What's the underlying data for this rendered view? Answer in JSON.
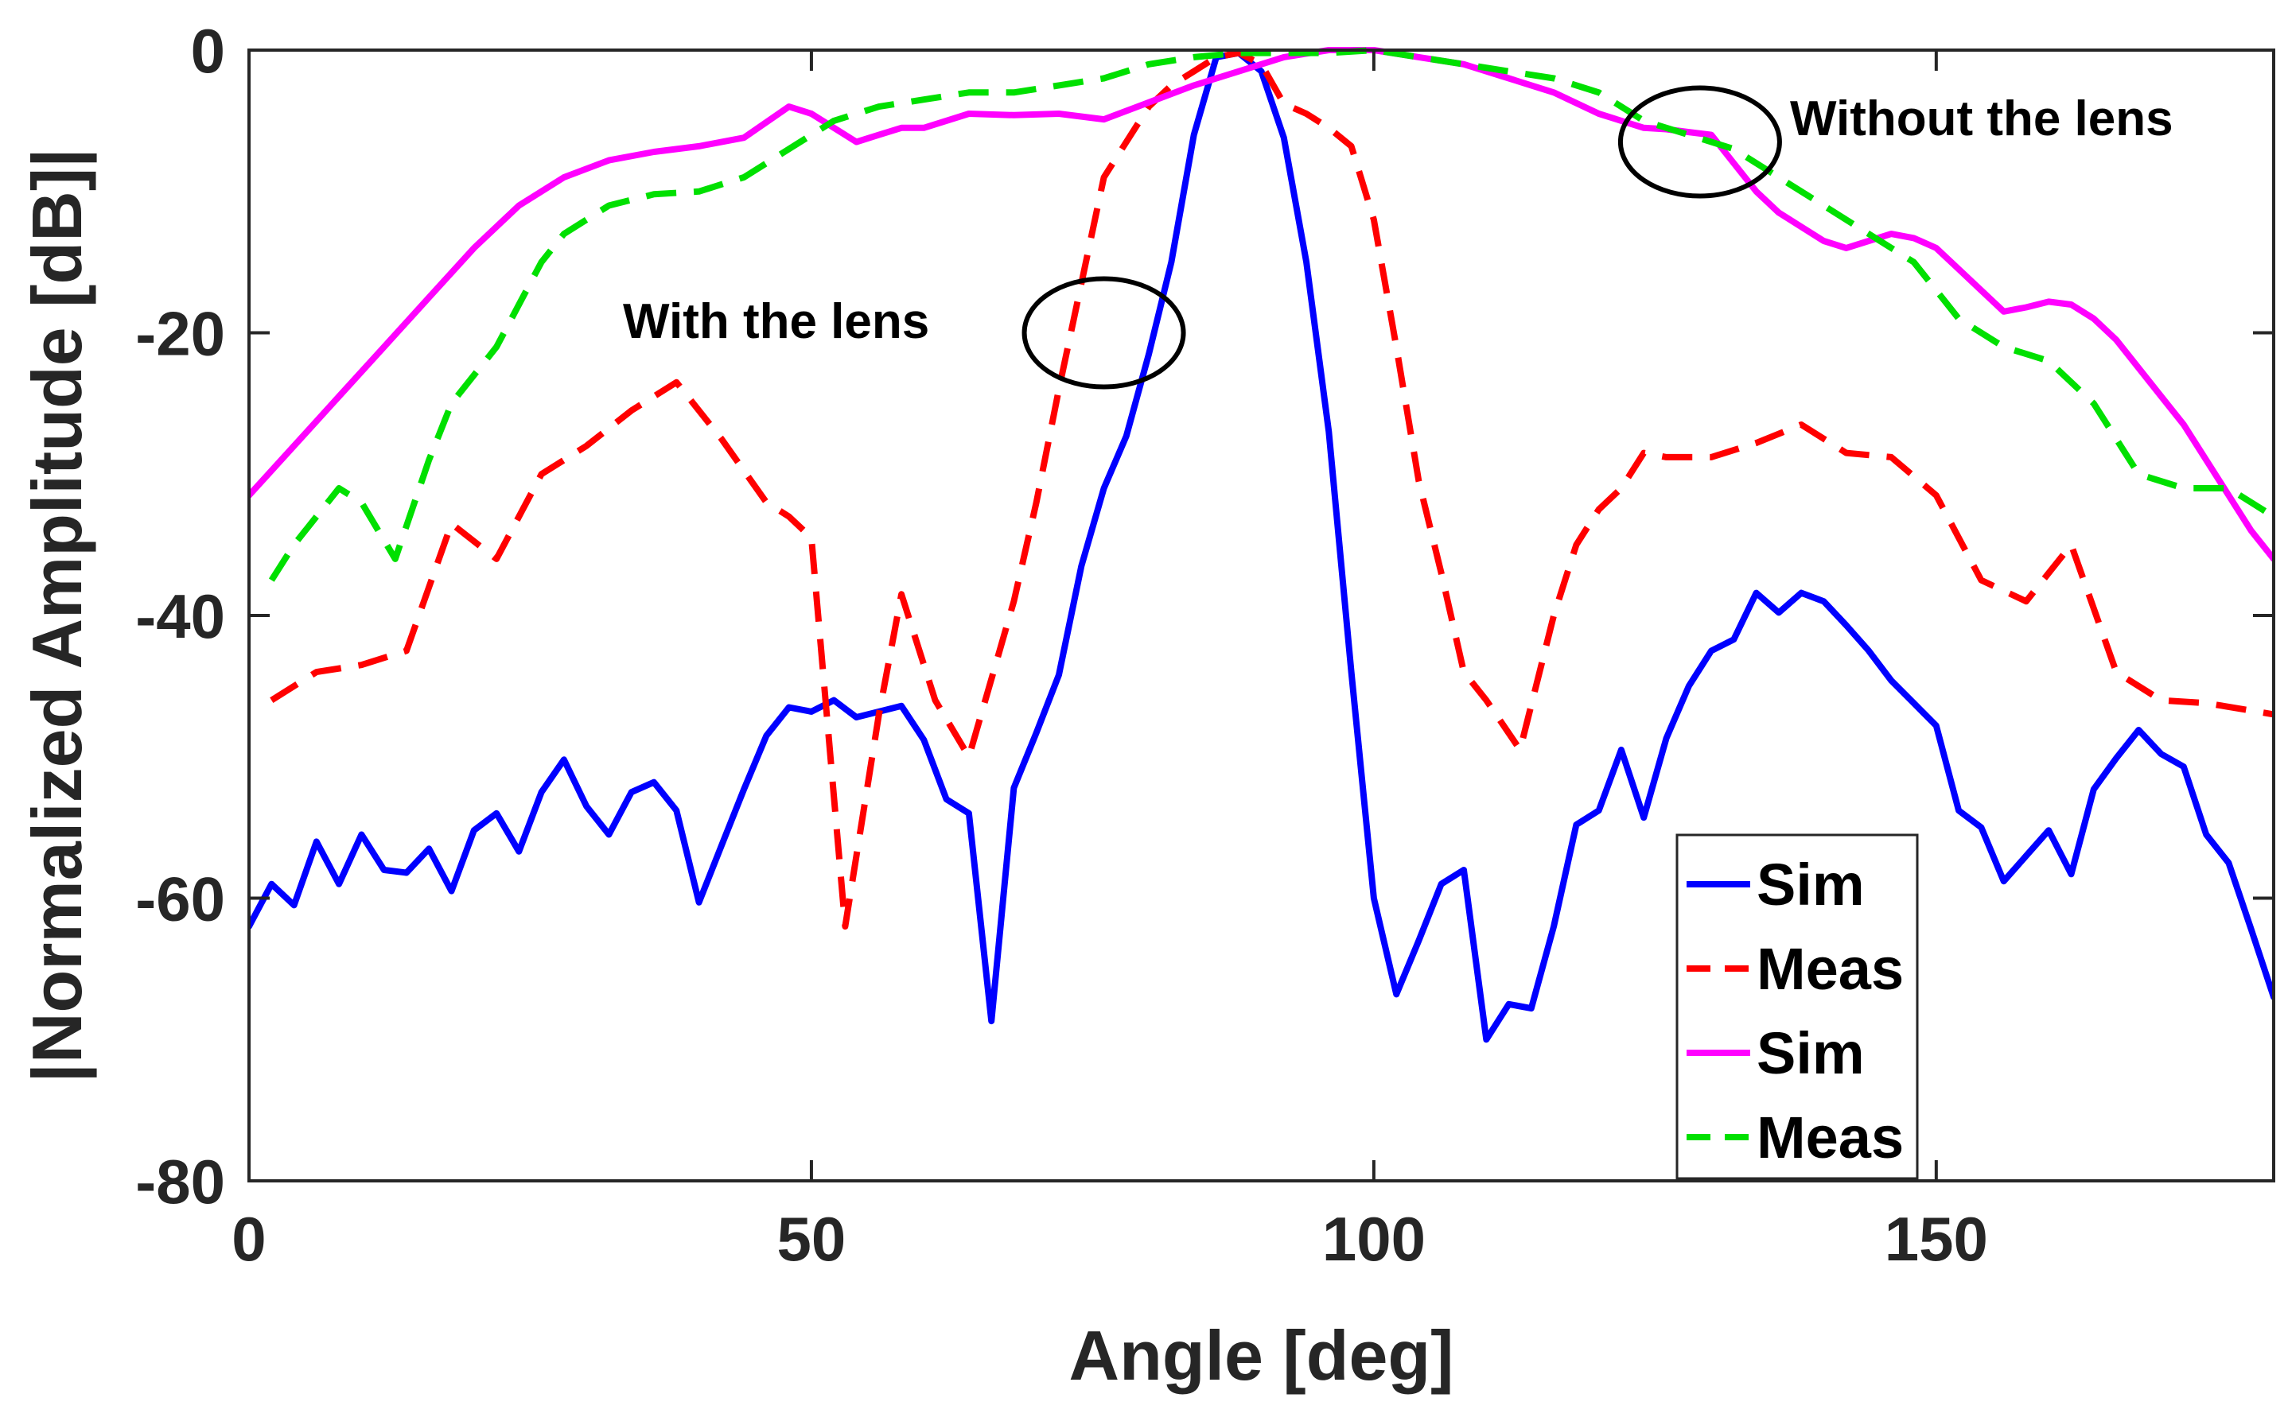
{
  "chart_data": {
    "type": "line",
    "title": "",
    "xlabel": "Angle [deg]",
    "ylabel": "|Normalized Amplitude [dB]|",
    "xlim": [
      0,
      180
    ],
    "ylim": [
      -80,
      0
    ],
    "xticks": [
      0,
      50,
      100,
      150
    ],
    "yticks": [
      0,
      -20,
      -40,
      -60,
      -80
    ],
    "grid": false,
    "legend_position": "bottom-right",
    "annotations": [
      {
        "text": "With the lens",
        "x": 76,
        "y": -20
      },
      {
        "text": "Without the lens",
        "x": 129,
        "y": -6.5
      }
    ],
    "series": [
      {
        "name": "Sim",
        "group": "with-lens",
        "color": "#0000FF",
        "style": "solid",
        "x": [
          0,
          2,
          4,
          6,
          8,
          10,
          12,
          14,
          16,
          18,
          20,
          22,
          24,
          26,
          28,
          30,
          32,
          34,
          36,
          38,
          40,
          42,
          44,
          46,
          48,
          50,
          52,
          54,
          56,
          58,
          60,
          62,
          64,
          66,
          68,
          70,
          72,
          74,
          76,
          78,
          80,
          82,
          84,
          86,
          88,
          90,
          92,
          94,
          96,
          98,
          100,
          102,
          104,
          106,
          108,
          110,
          112,
          114,
          116,
          118,
          120,
          122,
          124,
          126,
          128,
          130,
          132,
          134,
          136,
          138,
          140,
          142,
          144,
          146,
          148,
          150,
          152,
          154,
          156,
          158,
          160,
          162,
          164,
          166,
          168,
          170,
          172,
          174,
          176,
          178,
          180
        ],
        "y": [
          -62,
          -59,
          -60.5,
          -56,
          -59,
          -55.5,
          -58,
          -58.2,
          -56.5,
          -59.5,
          -55.2,
          -54,
          -56.7,
          -52.5,
          -50.2,
          -53.5,
          -55.5,
          -52.5,
          -51.8,
          -53.8,
          -60.3,
          -56.3,
          -52.3,
          -48.5,
          -46.5,
          -46.8,
          -46,
          -47.2,
          -46.8,
          -46.4,
          -48.8,
          -53,
          -54,
          -68.7,
          -52.2,
          -48.3,
          -44.2,
          -36.5,
          -31,
          -27.3,
          -21.5,
          -15,
          -6,
          -0.5,
          -0.2,
          -1.5,
          -6.2,
          -15,
          -27,
          -44,
          -60,
          -66.8,
          -63,
          -59,
          -58,
          -70,
          -67.5,
          -67.8,
          -62,
          -54.8,
          -53.8,
          -49.5,
          -54.3,
          -48.7,
          -45,
          -42.5,
          -41.7,
          -38.4,
          -39.8,
          -38.4,
          -39,
          -40.7,
          -42.5,
          -44.6,
          -46.2,
          -47.8,
          -53.8,
          -55,
          -58.8,
          -57,
          -55.2,
          -58.3,
          -52.3,
          -50.1,
          -48.1,
          -49.8,
          -50.7,
          -55.5,
          -57.5,
          -62.2,
          -67
        ]
      },
      {
        "name": "Meas",
        "group": "with-lens",
        "color": "#FF0000",
        "style": "dashed",
        "x": [
          2,
          6,
          10,
          14,
          18,
          22,
          26,
          30,
          34,
          38,
          42,
          46,
          48,
          50,
          53,
          56,
          58,
          61,
          64,
          66,
          68,
          70,
          72,
          74,
          76,
          78,
          80,
          82,
          84,
          86,
          88,
          90,
          92,
          94,
          96,
          98,
          100,
          102,
          104,
          106,
          108,
          110,
          113,
          116,
          118,
          120,
          122,
          124,
          126,
          130,
          134,
          138,
          142,
          146,
          150,
          154,
          158,
          162,
          166,
          170,
          174,
          180
        ],
        "y": [
          -46,
          -44,
          -43.5,
          -42.5,
          -33.5,
          -36,
          -30,
          -28,
          -25.5,
          -23.5,
          -27.5,
          -32,
          -33,
          -34.5,
          -62,
          -47,
          -38.5,
          -46,
          -50,
          -44.5,
          -39,
          -32,
          -24,
          -16.5,
          -9,
          -6.5,
          -4,
          -2.5,
          -1.5,
          -0.5,
          -0.2,
          -1,
          -3.8,
          -4.5,
          -5.5,
          -6.8,
          -12,
          -21,
          -30.5,
          -37,
          -44,
          -46,
          -49.5,
          -40,
          -35,
          -32.5,
          -31,
          -28.5,
          -28.8,
          -28.8,
          -27.8,
          -26.5,
          -28.5,
          -28.8,
          -31.5,
          -37.5,
          -39,
          -35,
          -44,
          -46,
          -46.2,
          -47
        ]
      },
      {
        "name": "Sim",
        "group": "without-lens",
        "color": "#FF00FF",
        "style": "solid",
        "x": [
          0,
          4,
          8,
          12,
          16,
          20,
          24,
          28,
          32,
          36,
          40,
          44,
          48,
          50,
          52,
          54,
          56,
          58,
          60,
          64,
          68,
          72,
          76,
          80,
          84,
          88,
          92,
          96,
          100,
          104,
          108,
          112,
          116,
          120,
          124,
          126,
          128,
          130,
          132,
          134,
          136,
          138,
          140,
          142,
          144,
          146,
          148,
          150,
          152,
          154,
          156,
          158,
          160,
          162,
          164,
          166,
          168,
          170,
          172,
          174,
          176,
          178,
          180
        ],
        "y": [
          -31.5,
          -28,
          -24.5,
          -21,
          -17.5,
          -14,
          -11,
          -9,
          -7.8,
          -7.2,
          -6.8,
          -6.2,
          -4,
          -4.5,
          -5.5,
          -6.5,
          -6,
          -5.5,
          -5.5,
          -4.5,
          -4.6,
          -4.5,
          -4.9,
          -3.7,
          -2.5,
          -1.5,
          -0.5,
          0,
          0,
          -0.5,
          -1,
          -2,
          -3,
          -4.5,
          -5.5,
          -5.6,
          -5.8,
          -6,
          -8,
          -10,
          -11.5,
          -12.5,
          -13.5,
          -14,
          -13.5,
          -13,
          -13.3,
          -14,
          -15.5,
          -17,
          -18.5,
          -18.2,
          -17.8,
          -18,
          -19,
          -20.5,
          -22.5,
          -24.5,
          -26.5,
          -29,
          -31.5,
          -34,
          -36
        ]
      },
      {
        "name": "Meas",
        "group": "without-lens",
        "color": "#00E000",
        "style": "dashed",
        "x": [
          2,
          4,
          6,
          8,
          10,
          13,
          16,
          18,
          20,
          22,
          24,
          26,
          28,
          32,
          36,
          40,
          44,
          48,
          52,
          56,
          60,
          64,
          68,
          72,
          76,
          80,
          84,
          88,
          92,
          96,
          100,
          104,
          108,
          112,
          116,
          120,
          124,
          128,
          132,
          136,
          140,
          144,
          148,
          152,
          156,
          160,
          164,
          168,
          172,
          176,
          180
        ],
        "y": [
          -37.5,
          -35,
          -33,
          -31,
          -32,
          -36,
          -29,
          -25,
          -23,
          -21,
          -18,
          -15,
          -13,
          -11,
          -10.2,
          -10,
          -9,
          -7,
          -5,
          -4,
          -3.5,
          -3,
          -3,
          -2.5,
          -2,
          -1,
          -0.5,
          -0.2,
          -0.2,
          -0.2,
          0,
          -0.5,
          -1,
          -1.5,
          -2,
          -3,
          -5,
          -6,
          -7,
          -9,
          -11,
          -13,
          -15,
          -19,
          -21,
          -22,
          -25,
          -30,
          -31,
          -31,
          -33
        ]
      }
    ]
  }
}
